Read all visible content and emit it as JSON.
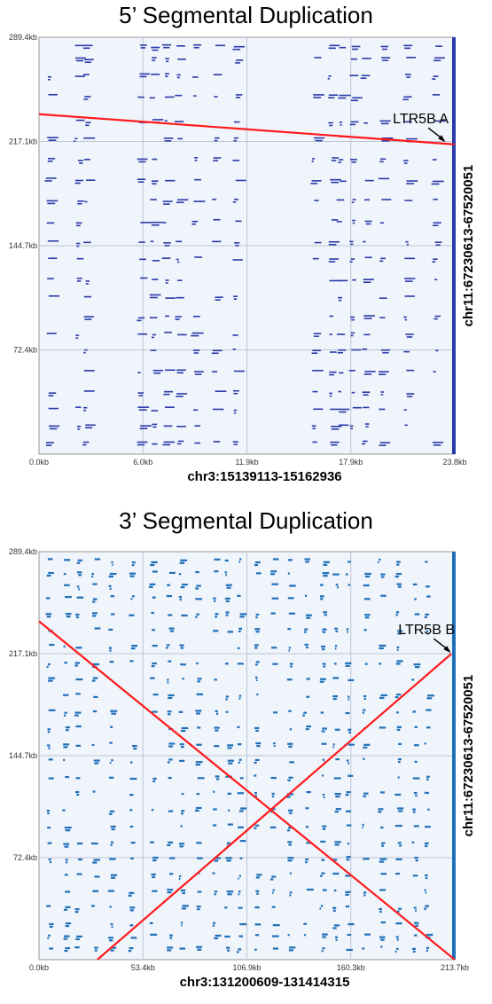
{
  "chart_data": [
    {
      "type": "scatter",
      "title": "5’ Segmental Duplication",
      "xlabel": "chr3:15139113-15162936",
      "ylabel": "chr11:67230613-67520051",
      "x_ticks": [
        "0.0kb",
        "6.0kb",
        "11.9kb",
        "17.9kb",
        "23.8kb"
      ],
      "y_ticks": [
        "289.4kb",
        "217.1kb",
        "144.7kb",
        "72.4kb"
      ],
      "xlim": [
        0,
        23.8
      ],
      "ylim": [
        0,
        289.4
      ],
      "dot_color": "#2a3aa8",
      "highlight_line": {
        "x": [
          0,
          23.8
        ],
        "y": [
          236,
          215
        ]
      },
      "annotation": {
        "text": "LTR5B A",
        "x": 23.3,
        "y": 216
      }
    },
    {
      "type": "scatter",
      "title": "3’ Segmental Duplication",
      "xlabel": "chr3:131200609-131414315",
      "ylabel": "chr11:67230613-67520051",
      "x_ticks": [
        "0.0kb",
        "53.4kb",
        "106.9kb",
        "160.3kb",
        "213.7kb"
      ],
      "y_ticks": [
        "289.4kb",
        "217.1kb",
        "144.7kb",
        "72.4kb"
      ],
      "xlim": [
        0,
        213.7
      ],
      "ylim": [
        0,
        289.4
      ],
      "dot_color": "#1f6fb8",
      "highlight_line": {
        "x": [
          0,
          213.7
        ],
        "y": [
          240,
          0
        ]
      },
      "highlight_line2": {
        "x": [
          30,
          212
        ],
        "y": [
          0,
          217
        ]
      },
      "annotation": {
        "text": "LTR5B B",
        "x": 212,
        "y": 217
      }
    }
  ]
}
